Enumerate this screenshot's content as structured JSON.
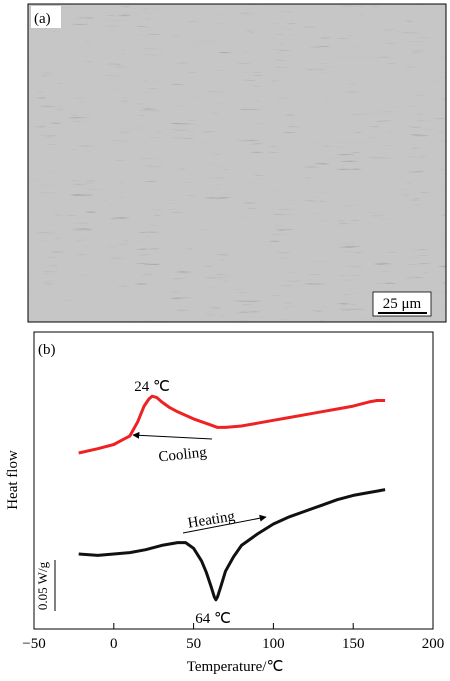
{
  "panel_a": {
    "label": "(a)",
    "scale_bar": "25 μm"
  },
  "panel_b": {
    "label": "(b)"
  },
  "chart_data": {
    "type": "line",
    "xlabel": "Temperature/℃",
    "ylabel": "Heat flow",
    "xlim": [
      -50,
      200
    ],
    "x_ticks": [
      -50,
      0,
      50,
      100,
      150,
      200
    ],
    "y_ticks_shown": false,
    "scale_bar_label": "0.05 W/g",
    "series": [
      {
        "name": "Cooling",
        "color": "#ee2222",
        "x": [
          -22,
          -10,
          0,
          5,
          10,
          15,
          19,
          22,
          24,
          27,
          30,
          35,
          40,
          50,
          60,
          65,
          70,
          80,
          90,
          100,
          110,
          120,
          130,
          140,
          150,
          160,
          165,
          170
        ],
        "y": [
          0.0,
          0.003,
          0.006,
          0.009,
          0.012,
          0.022,
          0.033,
          0.038,
          0.04,
          0.039,
          0.036,
          0.032,
          0.029,
          0.024,
          0.02,
          0.018,
          0.018,
          0.019,
          0.021,
          0.023,
          0.025,
          0.027,
          0.029,
          0.031,
          0.033,
          0.036,
          0.037,
          0.037
        ]
      },
      {
        "name": "Heating",
        "color": "#111111",
        "x": [
          -22,
          -10,
          0,
          10,
          20,
          30,
          40,
          45,
          50,
          55,
          58,
          61,
          63,
          64,
          65,
          67,
          70,
          75,
          80,
          90,
          100,
          110,
          120,
          130,
          140,
          150,
          160,
          165,
          170
        ],
        "y": [
          0.0,
          -0.001,
          0.0,
          0.001,
          0.003,
          0.006,
          0.008,
          0.008,
          0.004,
          -0.005,
          -0.013,
          -0.023,
          -0.03,
          -0.032,
          -0.03,
          -0.023,
          -0.012,
          -0.002,
          0.006,
          0.014,
          0.021,
          0.026,
          0.03,
          0.034,
          0.038,
          0.041,
          0.043,
          0.044,
          0.045
        ]
      }
    ],
    "annotations": {
      "cooling_peak": {
        "text": "24 ℃",
        "x": 24
      },
      "cooling_arrow": "Cooling",
      "heating_arrow": "Heating",
      "heating_peak": {
        "text": "64 ℃",
        "x": 64
      }
    }
  }
}
